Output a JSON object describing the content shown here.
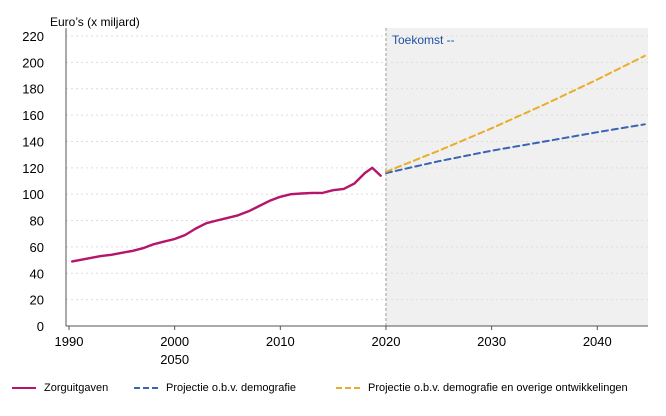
{
  "chart_data": {
    "type": "line",
    "ylabel": "Euro’s (x miljard)",
    "annotation": "Toekomst --",
    "ylim": [
      0,
      220
    ],
    "yticks": [
      0,
      20,
      40,
      60,
      80,
      100,
      120,
      140,
      160,
      180,
      200,
      220
    ],
    "xlim": [
      1990,
      2045
    ],
    "xticks": [
      {
        "value": 1990,
        "label": "1990"
      },
      {
        "value": 2000,
        "label": "2000"
      },
      {
        "value": 2010,
        "label": "2010"
      },
      {
        "value": 2020,
        "label": "2020"
      },
      {
        "value": 2030,
        "label": "2030"
      },
      {
        "value": 2040,
        "label": "2040"
      }
    ],
    "extra_xlabel": "2050",
    "future_start": 2020,
    "grid": "horizontal",
    "legend_position": "bottom",
    "series": [
      {
        "name": "Zorguitgaven",
        "color": "#b5166b",
        "style": "solid",
        "points": [
          [
            1990.3,
            49
          ],
          [
            1991,
            50
          ],
          [
            1992,
            51.5
          ],
          [
            1993,
            53
          ],
          [
            1994,
            54
          ],
          [
            1995,
            55.5
          ],
          [
            1996,
            57
          ],
          [
            1997,
            59
          ],
          [
            1998,
            62
          ],
          [
            1999,
            64
          ],
          [
            2000,
            66
          ],
          [
            2001,
            69
          ],
          [
            2002,
            74
          ],
          [
            2003,
            78
          ],
          [
            2004,
            80
          ],
          [
            2005,
            82
          ],
          [
            2006,
            84
          ],
          [
            2007,
            87
          ],
          [
            2008,
            91
          ],
          [
            2009,
            95
          ],
          [
            2010,
            98
          ],
          [
            2011,
            100
          ],
          [
            2012,
            100.5
          ],
          [
            2013,
            101
          ],
          [
            2014,
            101
          ],
          [
            2015,
            103
          ],
          [
            2016,
            104
          ],
          [
            2017,
            108
          ],
          [
            2018,
            116
          ],
          [
            2018.7,
            120
          ],
          [
            2019.5,
            114
          ]
        ]
      },
      {
        "name": "Projectie o.b.v. demografie",
        "color": "#3a64b4",
        "style": "dashed",
        "points": [
          [
            2020,
            116
          ],
          [
            2025,
            125
          ],
          [
            2030,
            133
          ],
          [
            2035,
            140
          ],
          [
            2040,
            147
          ],
          [
            2044.5,
            153
          ]
        ]
      },
      {
        "name": "Projectie o.b.v. demografie en overige ontwikkelingen",
        "color": "#e8ad2a",
        "style": "dashed",
        "points": [
          [
            2020,
            117
          ],
          [
            2025,
            133
          ],
          [
            2030,
            150
          ],
          [
            2035,
            168
          ],
          [
            2040,
            187
          ],
          [
            2044.5,
            205
          ]
        ]
      }
    ]
  }
}
